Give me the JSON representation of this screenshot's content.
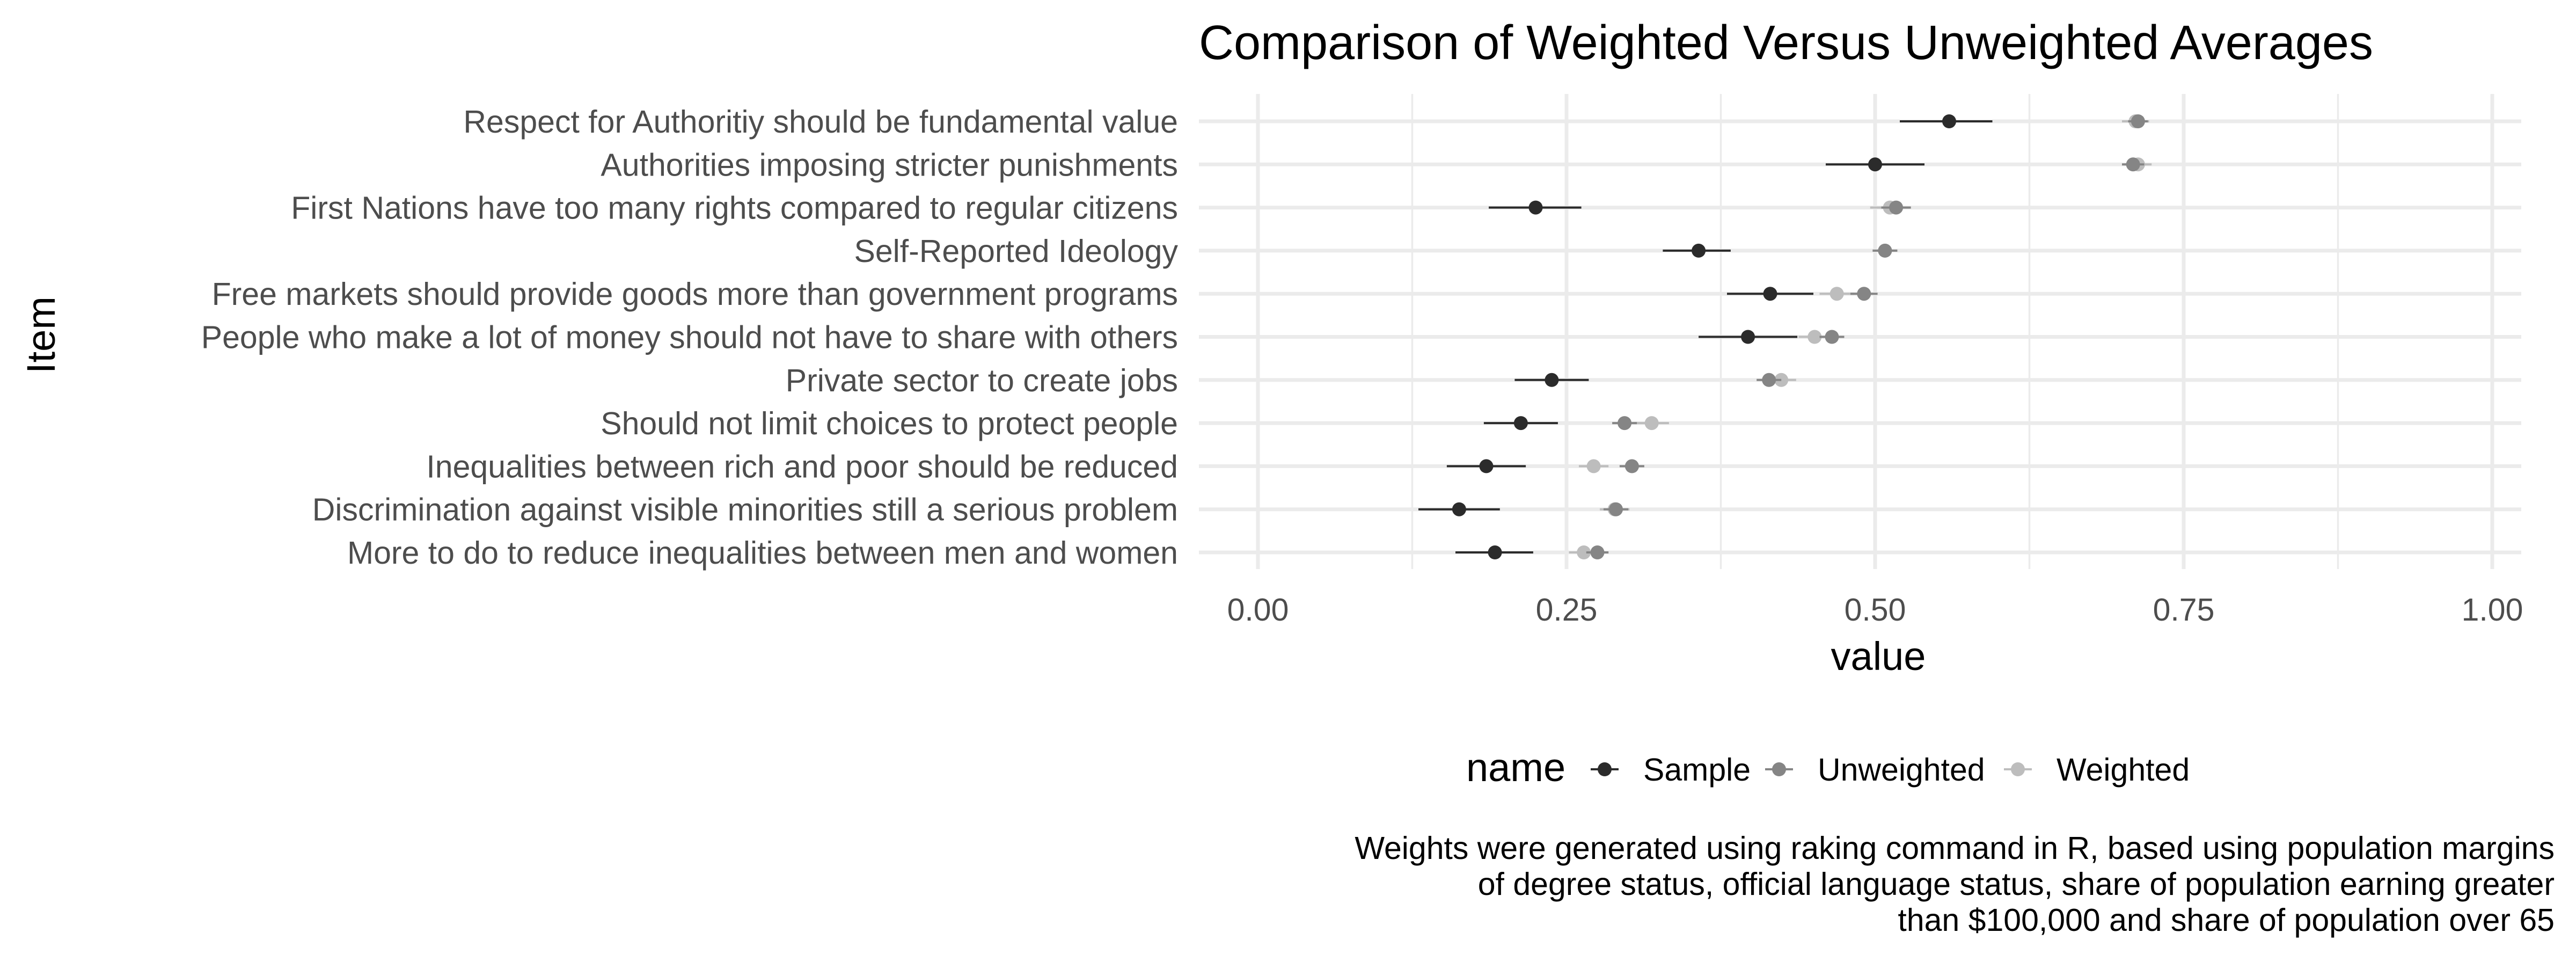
{
  "chart_data": {
    "type": "scatter",
    "title": "Comparison of Weighted Versus Unweighted Averages",
    "xlabel": "value",
    "ylabel": "Item",
    "xlim": [
      0.0,
      1.0
    ],
    "x_ticks": [
      "0.00",
      "0.25",
      "0.50",
      "0.75",
      "1.00"
    ],
    "grid": true,
    "legend": {
      "title": "name",
      "position": "bottom",
      "entries": [
        "Sample",
        "Unweighted",
        "Weighted"
      ]
    },
    "categories": [
      "Respect for Authoritiy should be fundamental value",
      "Authorities imposing stricter punishments",
      "First Nations have too many rights compared to regular citizens",
      "Self-Reported Ideology",
      "Free markets should provide goods more than government programs",
      "People who make a lot of money should not have to share with others",
      "Private sector to create jobs",
      "Should not limit choices to protect people",
      "Inequalities between rich and poor should be reduced",
      "Discrimination against visible minorities still a serious problem",
      "More to do to reduce inequalities between men and women"
    ],
    "series": [
      {
        "name": "Sample",
        "color": "#2b2b2b",
        "values": [
          0.56,
          0.5,
          0.225,
          0.357,
          0.415,
          0.397,
          0.238,
          0.213,
          0.185,
          0.163,
          0.192
        ],
        "lower": [
          0.52,
          0.46,
          0.187,
          0.328,
          0.38,
          0.357,
          0.208,
          0.183,
          0.153,
          0.13,
          0.16
        ],
        "upper": [
          0.595,
          0.54,
          0.262,
          0.383,
          0.45,
          0.437,
          0.268,
          0.243,
          0.217,
          0.196,
          0.223
        ]
      },
      {
        "name": "Unweighted",
        "color": "#858585",
        "values": [
          0.713,
          0.709,
          0.517,
          0.508,
          0.491,
          0.465,
          0.414,
          0.297,
          0.303,
          0.29,
          0.275
        ],
        "lower": [
          0.705,
          0.7,
          0.505,
          0.498,
          0.48,
          0.455,
          0.404,
          0.287,
          0.293,
          0.28,
          0.266
        ],
        "upper": [
          0.721,
          0.718,
          0.529,
          0.518,
          0.502,
          0.475,
          0.424,
          0.307,
          0.313,
          0.3,
          0.284
        ]
      },
      {
        "name": "Weighted",
        "color": "#bdbdbd",
        "values": [
          0.711,
          0.713,
          0.512,
          0.508,
          0.469,
          0.451,
          0.424,
          0.319,
          0.272,
          0.289,
          0.264
        ],
        "lower": [
          0.7,
          0.702,
          0.496,
          0.498,
          0.455,
          0.438,
          0.412,
          0.305,
          0.26,
          0.277,
          0.252
        ],
        "upper": [
          0.722,
          0.724,
          0.528,
          0.518,
          0.483,
          0.464,
          0.436,
          0.333,
          0.284,
          0.301,
          0.276
        ]
      }
    ]
  },
  "caption": {
    "lines": [
      "Weights were generated using raking command in R, based using population margins",
      "of degree status, official language status, share of population earning greater",
      "than $100,000 and share of population over 65"
    ]
  }
}
